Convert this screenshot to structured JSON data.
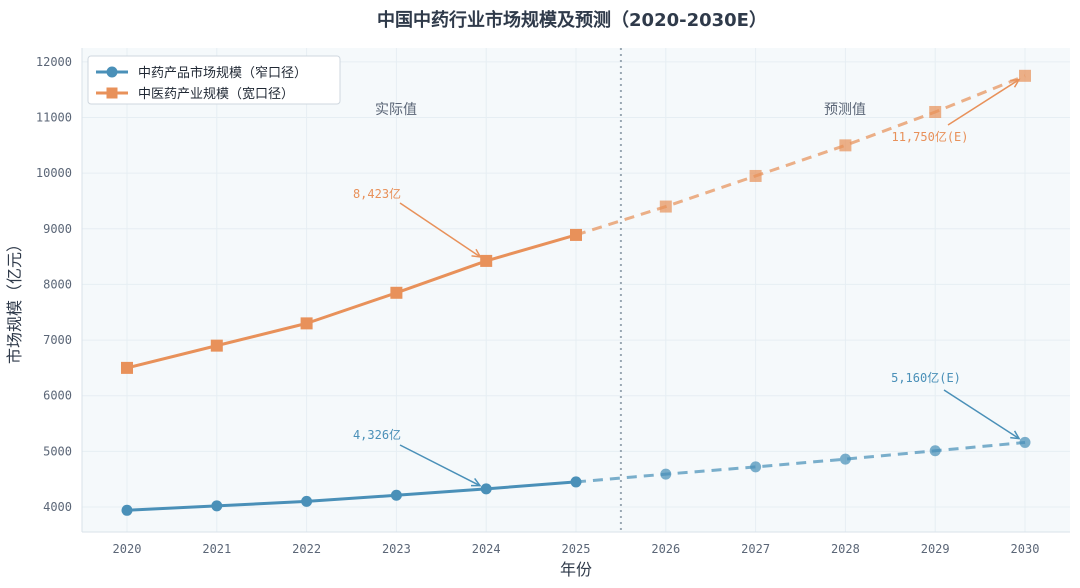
{
  "chart_data": {
    "type": "line",
    "title": "中国中药行业市场规模及预测（2020-2030E）",
    "xlabel": "年份",
    "ylabel": "市场规模（亿元）",
    "x": [
      "2020",
      "2021",
      "2022",
      "2023",
      "2024",
      "2025",
      "2026",
      "2027",
      "2028",
      "2029",
      "2030"
    ],
    "ylim": [
      3550,
      12250
    ],
    "yticks": [
      4000,
      5000,
      6000,
      7000,
      8000,
      9000,
      10000,
      11000,
      12000
    ],
    "split_after": "2025",
    "regions": {
      "actual": "实际值",
      "forecast": "预测值"
    },
    "series": [
      {
        "name": "中药产品市场规模（窄口径）",
        "color": "#4a90b8",
        "marker": "circle",
        "values": [
          3940,
          4020,
          4100,
          4210,
          4326,
          4450,
          4590,
          4720,
          4860,
          5010,
          5160
        ]
      },
      {
        "name": "中医药产业规模（宽口径）",
        "color": "#e8915a",
        "marker": "square",
        "values": [
          6500,
          6900,
          7300,
          7850,
          8423,
          8890,
          9400,
          9950,
          10500,
          11100,
          11750
        ]
      }
    ],
    "annotations": [
      {
        "text": "8,423亿",
        "series": 1,
        "x": "2024",
        "color": "#e8915a"
      },
      {
        "text": "11,750亿(E)",
        "series": 1,
        "x": "2030",
        "color": "#e8915a"
      },
      {
        "text": "4,326亿",
        "series": 0,
        "x": "2024",
        "color": "#4a90b8"
      },
      {
        "text": "5,160亿(E)",
        "series": 0,
        "x": "2030",
        "color": "#4a90b8"
      }
    ]
  }
}
